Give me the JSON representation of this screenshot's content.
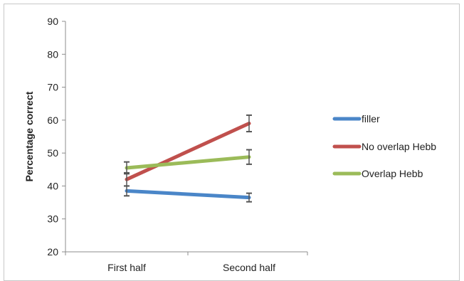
{
  "chart_data": {
    "type": "line",
    "title": "",
    "xlabel": "",
    "ylabel": "Percentage correct",
    "ylim": [
      20,
      90
    ],
    "yticks": [
      20,
      30,
      40,
      50,
      60,
      70,
      80,
      90
    ],
    "categories": [
      "First half",
      "Second half"
    ],
    "grid": false,
    "legend_position": "right",
    "series": [
      {
        "name": "filler",
        "color": "#4a86c8",
        "values": [
          38.5,
          36.5
        ],
        "errors": [
          1.5,
          1.3
        ]
      },
      {
        "name": "No overlap Hebb",
        "color": "#c0504d",
        "values": [
          42.0,
          59.0
        ],
        "errors": [
          2.0,
          2.5
        ]
      },
      {
        "name": "Overlap Hebb",
        "color": "#9bbb59",
        "values": [
          45.5,
          48.8
        ],
        "errors": [
          1.8,
          2.2
        ]
      }
    ]
  }
}
